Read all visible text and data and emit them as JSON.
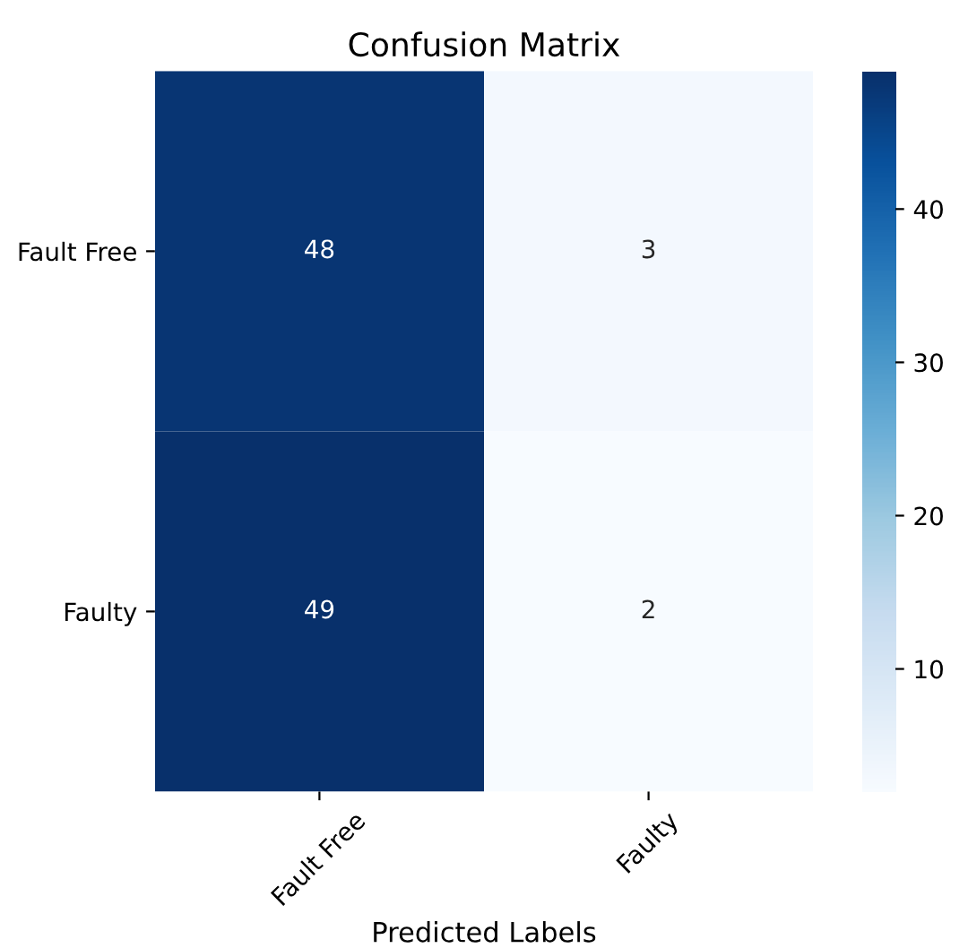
{
  "chart_data": {
    "type": "heatmap",
    "title": "Confusion Matrix",
    "xlabel": "Predicted Labels",
    "categories": [
      "Fault Free",
      "Faulty"
    ],
    "y_categories": [
      "Fault Free",
      "Faulty"
    ],
    "cells": [
      [
        48,
        3
      ],
      [
        49,
        2
      ]
    ],
    "data_labels": true,
    "clim": [
      2,
      49
    ],
    "cticks": [
      10,
      20,
      30,
      40
    ]
  }
}
